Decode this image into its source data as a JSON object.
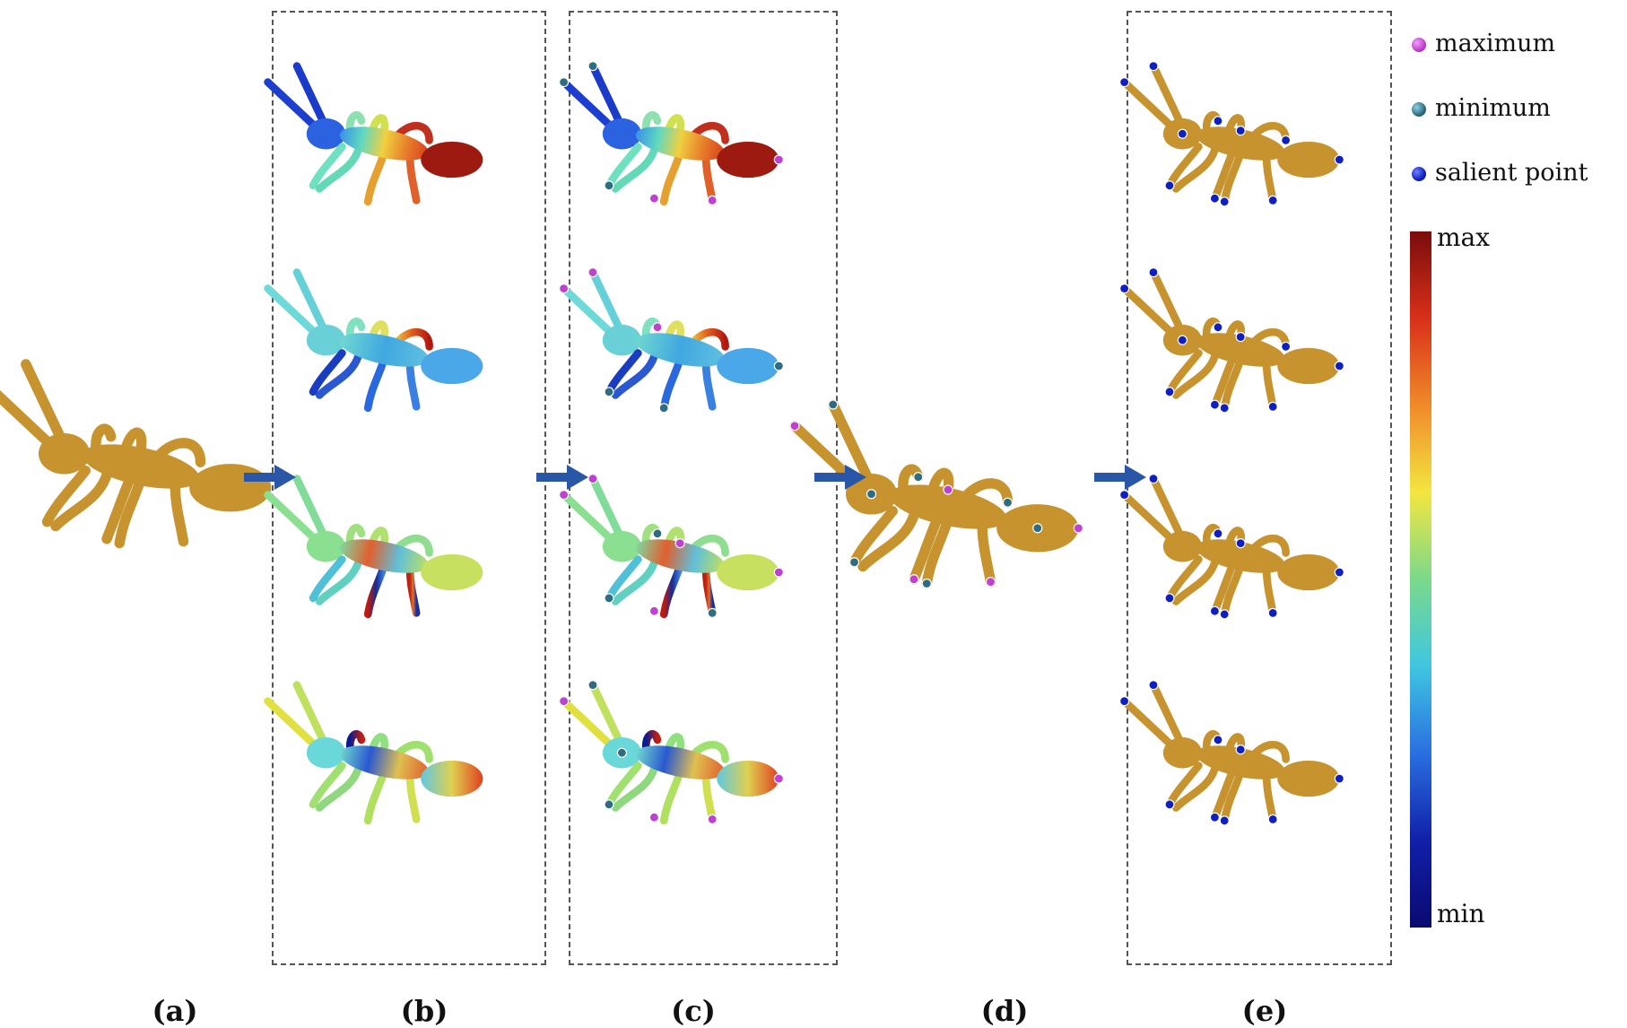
{
  "panel_labels": [
    "(a)",
    "(b)",
    "(c)",
    "(d)",
    "(e)"
  ],
  "legend": {
    "items": [
      {
        "label": "maximum",
        "color": "#c040d0"
      },
      {
        "label": "minimum",
        "color": "#2f6c80"
      },
      {
        "label": "salient point",
        "color": "#1020c0"
      }
    ]
  },
  "colorbar": {
    "max_label": "max",
    "min_label": "min",
    "colors": [
      "#7a0c0c",
      "#d8301a",
      "#f08a2a",
      "#f3e640",
      "#7bd98a",
      "#3fc6e0",
      "#2a6fe0",
      "#1020a8",
      "#0a0a70"
    ]
  },
  "colors": {
    "ant": "#c7932e",
    "arrow": "#2a56a8",
    "max_point": "#c040d0",
    "min_point": "#2f6c80",
    "salient_point": "#1020c0"
  }
}
